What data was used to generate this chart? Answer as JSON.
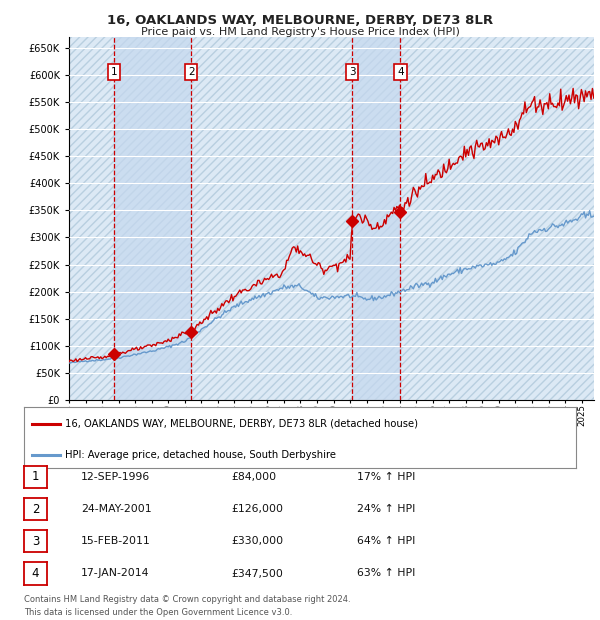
{
  "title": "16, OAKLANDS WAY, MELBOURNE, DERBY, DE73 8LR",
  "subtitle": "Price paid vs. HM Land Registry's House Price Index (HPI)",
  "ylim": [
    0,
    670000
  ],
  "yticks": [
    0,
    50000,
    100000,
    150000,
    200000,
    250000,
    300000,
    350000,
    400000,
    450000,
    500000,
    550000,
    600000,
    650000
  ],
  "xlim_start": 1994.0,
  "xlim_end": 2025.75,
  "bg_color": "#ffffff",
  "plot_bg_color": "#dce9f5",
  "shade_color": "#c5d8ee",
  "hatch_color": "#b8cfe0",
  "grid_color": "#ffffff",
  "red_line_color": "#cc0000",
  "blue_line_color": "#6699cc",
  "transaction_color": "#cc0000",
  "vline_color": "#cc0000",
  "sale_points": [
    {
      "year": 1996.71,
      "price": 84000,
      "label": "1"
    },
    {
      "year": 2001.39,
      "price": 126000,
      "label": "2"
    },
    {
      "year": 2011.12,
      "price": 330000,
      "label": "3"
    },
    {
      "year": 2014.04,
      "price": 347500,
      "label": "4"
    }
  ],
  "table_rows": [
    {
      "num": "1",
      "date": "12-SEP-1996",
      "price": "£84,000",
      "change": "17% ↑ HPI"
    },
    {
      "num": "2",
      "date": "24-MAY-2001",
      "price": "£126,000",
      "change": "24% ↑ HPI"
    },
    {
      "num": "3",
      "date": "15-FEB-2011",
      "price": "£330,000",
      "change": "64% ↑ HPI"
    },
    {
      "num": "4",
      "date": "17-JAN-2014",
      "price": "£347,500",
      "change": "63% ↑ HPI"
    }
  ],
  "legend_red": "16, OAKLANDS WAY, MELBOURNE, DERBY, DE73 8LR (detached house)",
  "legend_blue": "HPI: Average price, detached house, South Derbyshire",
  "footer": "Contains HM Land Registry data © Crown copyright and database right 2024.\nThis data is licensed under the Open Government Licence v3.0."
}
